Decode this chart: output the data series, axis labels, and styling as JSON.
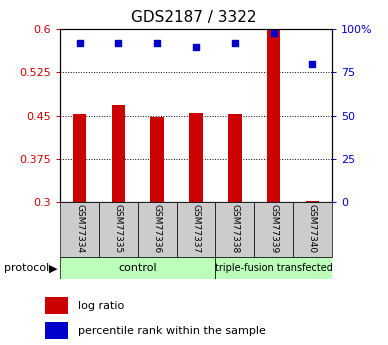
{
  "title": "GDS2187 / 3322",
  "samples": [
    "GSM77334",
    "GSM77335",
    "GSM77336",
    "GSM77337",
    "GSM77338",
    "GSM77339",
    "GSM77340"
  ],
  "log_ratio": [
    0.452,
    0.468,
    0.448,
    0.455,
    0.452,
    0.6,
    0.302
  ],
  "percentile_rank": [
    92,
    92,
    92,
    90,
    92,
    98,
    80
  ],
  "ylim_left": [
    0.3,
    0.6
  ],
  "ylim_right": [
    0,
    100
  ],
  "yticks_left": [
    0.3,
    0.375,
    0.45,
    0.525,
    0.6
  ],
  "yticks_right": [
    0,
    25,
    50,
    75,
    100
  ],
  "ytick_labels_left": [
    "0.3",
    "0.375",
    "0.45",
    "0.525",
    "0.6"
  ],
  "ytick_labels_right": [
    "0",
    "25",
    "50",
    "75",
    "100%"
  ],
  "hlines": [
    0.375,
    0.45,
    0.525
  ],
  "bar_color": "#cc0000",
  "dot_color": "#0000cc",
  "bar_bottom": 0.3,
  "control_samples": 4,
  "protocol_label": "protocol",
  "group_labels": [
    "control",
    "triple-fusion transfected"
  ],
  "legend_bar_label": "log ratio",
  "legend_dot_label": "percentile rank within the sample",
  "axes_label_color_left": "#cc0000",
  "axes_label_color_right": "#0000cc",
  "tick_label_area_color": "#cccccc",
  "group_bg_color": "#bbffbb",
  "title_fontsize": 11,
  "tick_fontsize": 8,
  "bar_width": 0.35
}
